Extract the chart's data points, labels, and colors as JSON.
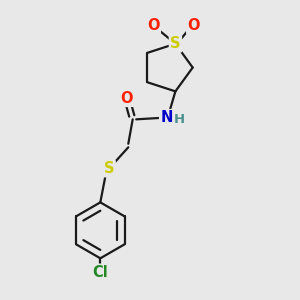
{
  "bg_color": "#e8e8e8",
  "bond_color": "#1a1a1a",
  "S_color": "#cccc00",
  "O_color": "#ff2200",
  "N_color": "#0000cc",
  "Cl_color": "#228822",
  "H_color": "#4a9090",
  "line_width": 1.6,
  "font_size": 10.5,
  "fig_w": 3.0,
  "fig_h": 3.0,
  "dpi": 100,
  "xlim": [
    0,
    10
  ],
  "ylim": [
    0,
    10
  ]
}
